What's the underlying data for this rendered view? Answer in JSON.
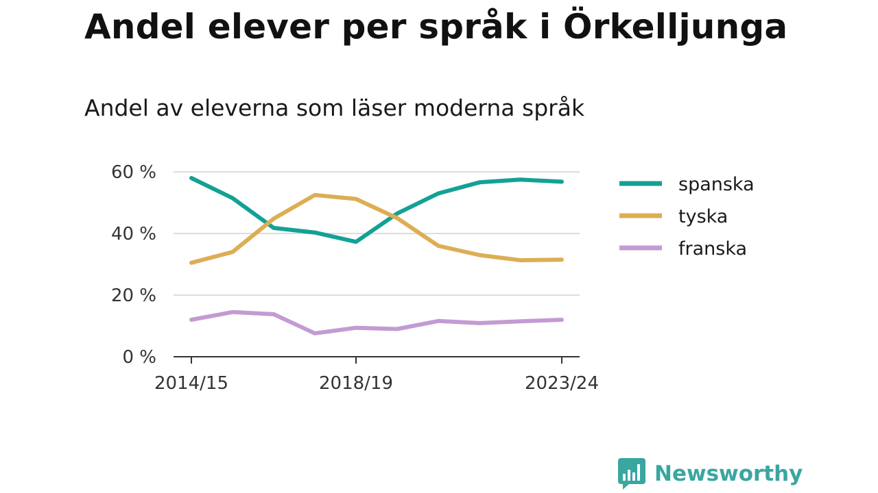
{
  "header": {
    "title": "Andel elever per språk i Örkelljunga",
    "subtitle": "Andel av eleverna som läser moderna språk"
  },
  "brand": {
    "name": "Newsworthy",
    "icon": "newsworthy-logo-icon",
    "color": "#3aa6a0"
  },
  "chart_data": {
    "type": "line",
    "x": [
      "2014/15",
      "2015/16",
      "2016/17",
      "2017/18",
      "2018/19",
      "2019/20",
      "2020/21",
      "2021/22",
      "2022/23",
      "2023/24"
    ],
    "x_tick_labels": [
      "2014/15",
      "2018/19",
      "2023/24"
    ],
    "y_ticks": [
      0,
      20,
      40,
      60
    ],
    "y_tick_labels": [
      "0 %",
      "20 %",
      "40 %",
      "60 %"
    ],
    "ylim": [
      0,
      60
    ],
    "grid": true,
    "legend": "right",
    "series": [
      {
        "name": "spanska",
        "color": "#14a195",
        "values": [
          58,
          51.5,
          41.8,
          40.3,
          37.3,
          46.5,
          53,
          56.6,
          57.5,
          56.8
        ]
      },
      {
        "name": "tyska",
        "color": "#dcae54",
        "values": [
          30.5,
          34,
          44.8,
          52.5,
          51.2,
          45,
          36,
          33,
          31.3,
          31.5
        ]
      },
      {
        "name": "franska",
        "color": "#c39bd3",
        "values": [
          12,
          14.5,
          13.8,
          7.6,
          9.4,
          9,
          11.6,
          10.9,
          11.5,
          12
        ]
      }
    ]
  }
}
